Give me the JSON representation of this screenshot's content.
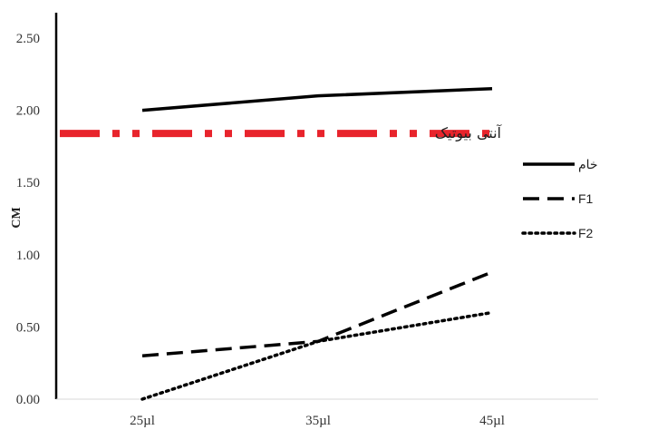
{
  "chart_data": {
    "type": "line",
    "categories": [
      "25µl",
      "35µl",
      "45µl"
    ],
    "ylabel": "CM",
    "ylim": [
      0,
      2.5
    ],
    "yticks": [
      "0.00",
      "0.50",
      "1.00",
      "1.50",
      "2.00",
      "2.50"
    ],
    "grid": false,
    "legend_position": "right",
    "series": [
      {
        "name": "خام",
        "values": [
          2.0,
          2.1,
          2.15
        ],
        "style": "solid",
        "color": "#000000"
      },
      {
        "name": "F1",
        "values": [
          0.3,
          0.4,
          0.88
        ],
        "style": "dashed",
        "color": "#000000"
      },
      {
        "name": "F2",
        "values": [
          0.0,
          0.4,
          0.6
        ],
        "style": "dotted",
        "color": "#000000"
      }
    ],
    "reference_line": {
      "label": "آنتی بیوتیک",
      "value": 1.84,
      "style": "dash-dot",
      "color": "#e8242c"
    }
  }
}
